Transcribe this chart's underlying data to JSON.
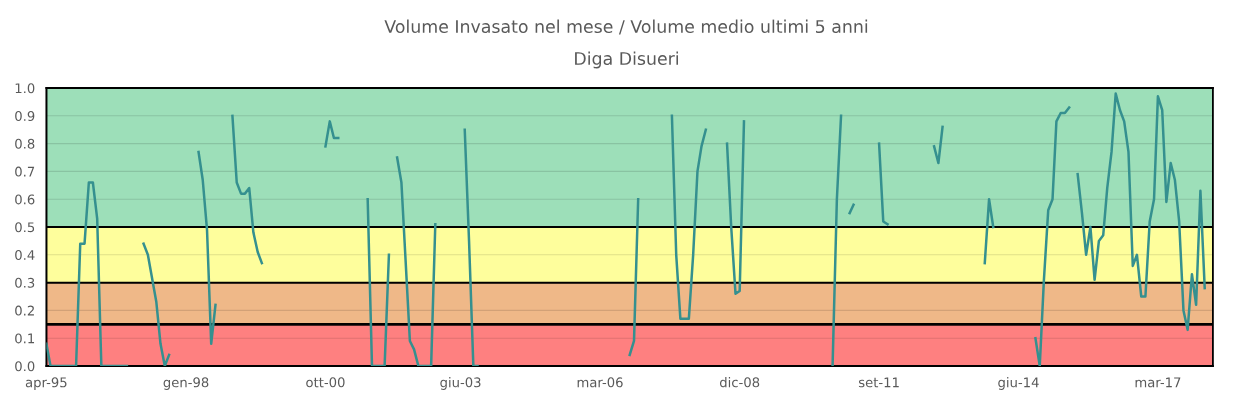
{
  "chart_data": {
    "type": "line",
    "title": "Volume Invasato nel mese / Volume medio ultimi 5 anni",
    "subtitle": "Diga Disueri",
    "x": [
      "1995-04",
      "1995-05",
      "1995-11",
      "1995-12",
      "1996-01",
      "1996-02",
      "1996-03",
      "1996-04",
      "1996-05",
      "1996-11",
      "1996-12",
      "1997-02",
      "1997-03",
      "1997-04",
      "1997-06",
      "1997-07",
      "1997-08",
      "1997-09",
      "1997-10",
      "1998-03",
      "1998-04",
      "1998-05",
      "1998-06",
      "1998-07",
      "1998-08",
      "1998-09",
      "1998-11",
      "1998-12",
      "1999-01",
      "1999-02",
      "1999-03",
      "1999-04",
      "1999-05",
      "1999-06",
      "1999-07",
      "1999-08",
      "2000-09",
      "2000-10",
      "2000-11",
      "2000-12",
      "2001-01",
      "2001-02",
      "2001-07",
      "2001-08",
      "2001-09",
      "2001-12",
      "2002-01",
      "2002-02",
      "2002-03",
      "2002-04",
      "2002-05",
      "2002-06",
      "2002-07",
      "2002-08",
      "2002-11",
      "2002-12",
      "2003-01",
      "2003-06",
      "2003-07",
      "2003-08",
      "2003-09",
      "2003-10",
      "2003-11",
      "2006-09",
      "2006-10",
      "2006-11",
      "2006-12",
      "2007-01",
      "2007-07",
      "2007-08",
      "2007-09",
      "2007-10",
      "2007-11",
      "2007-12",
      "2008-01",
      "2008-02",
      "2008-03",
      "2008-04",
      "2008-05",
      "2008-08",
      "2008-09",
      "2008-10",
      "2008-11",
      "2008-12",
      "2009-01",
      "2009-02",
      "2010-09",
      "2010-10",
      "2010-11",
      "2010-12",
      "2011-01",
      "2011-02",
      "2011-03",
      "2011-04",
      "2011-09",
      "2011-10",
      "2011-11",
      "2011-12",
      "2012-10",
      "2012-11",
      "2012-12",
      "2013-01",
      "2013-10",
      "2013-11",
      "2013-12",
      "2014-01",
      "2014-09",
      "2014-10",
      "2014-11",
      "2014-12",
      "2015-01",
      "2015-02",
      "2015-03",
      "2015-04",
      "2015-05",
      "2015-06",
      "2015-07",
      "2015-08",
      "2015-09",
      "2015-10",
      "2015-11",
      "2015-12",
      "2016-01",
      "2016-02",
      "2016-03",
      "2016-04",
      "2016-05",
      "2016-06",
      "2016-07",
      "2016-08",
      "2016-09",
      "2016-10",
      "2016-11",
      "2016-12",
      "2017-01",
      "2017-02",
      "2017-03",
      "2017-04",
      "2017-05",
      "2017-06",
      "2017-07",
      "2017-08",
      "2017-09",
      "2017-10",
      "2017-11",
      "2017-12",
      "2018-01",
      "2018-02"
    ],
    "series": [
      {
        "color": "#35908f",
        "values": [
          0.08,
          0,
          0,
          0.44,
          0.44,
          0.66,
          0.66,
          0.53,
          0,
          0,
          null,
          null,
          0.44,
          0.4,
          0.23,
          0.08,
          0,
          0.04,
          null,
          null,
          0.77,
          0.67,
          0.49,
          0.08,
          0.22,
          null,
          null,
          0.9,
          0.66,
          0.62,
          0.62,
          0.64,
          0.48,
          0.41,
          0.37,
          null,
          null,
          0.79,
          0.88,
          0.82,
          0.82,
          null,
          null,
          0.6,
          0,
          0,
          0.4,
          null,
          0.75,
          0.66,
          0.38,
          0.09,
          0.06,
          0,
          0,
          0.51,
          null,
          null,
          0.85,
          0.45,
          0,
          0,
          null,
          null,
          0.04,
          0.09,
          0.6,
          null,
          null,
          0.9,
          0.4,
          0.17,
          0.17,
          0.17,
          0.4,
          0.7,
          0.79,
          0.85,
          null,
          null,
          0.8,
          0.5,
          0.26,
          0.27,
          0.88,
          null,
          null,
          0,
          0.6,
          0.9,
          null,
          0.55,
          0.58,
          null,
          0.8,
          0.52,
          0.51,
          null,
          0.79,
          0.73,
          0.86,
          null,
          0.37,
          0.6,
          0.5,
          null,
          null,
          0.1,
          0,
          0.31,
          0.56,
          0.6,
          0.88,
          0.91,
          0.91,
          0.93,
          null,
          0.69,
          0.55,
          0.4,
          0.5,
          0.31,
          0.45,
          0.47,
          0.64,
          0.77,
          0.98,
          0.92,
          0.88,
          0.77,
          0.36,
          0.4,
          0.25,
          0.25,
          0.52,
          0.6,
          0.97,
          0.92,
          0.59,
          0.73,
          0.67,
          0.52,
          0.2,
          0.13,
          0.33,
          0.22,
          0.63,
          0.28
        ]
      }
    ],
    "xlim": [
      "1995-04",
      "2018-04"
    ],
    "xticks": [
      {
        "value": "1995-04",
        "label": "apr-95"
      },
      {
        "value": "1998-01",
        "label": "gen-98"
      },
      {
        "value": "2000-10",
        "label": "ott-00"
      },
      {
        "value": "2003-06",
        "label": "giu-03"
      },
      {
        "value": "2006-03",
        "label": "mar-06"
      },
      {
        "value": "2008-12",
        "label": "dic-08"
      },
      {
        "value": "2011-09",
        "label": "set-11"
      },
      {
        "value": "2014-06",
        "label": "giu-14"
      },
      {
        "value": "2017-03",
        "label": "mar-17"
      }
    ],
    "ylim": [
      0,
      1
    ],
    "yticks": [
      {
        "value": 0,
        "label": "0.0"
      },
      {
        "value": 0.1,
        "label": "0.1"
      },
      {
        "value": 0.2,
        "label": "0.2"
      },
      {
        "value": 0.3,
        "label": "0.3"
      },
      {
        "value": 0.4,
        "label": "0.4"
      },
      {
        "value": 0.5,
        "label": "0.5"
      },
      {
        "value": 0.6,
        "label": "0.6"
      },
      {
        "value": 0.7,
        "label": "0.7"
      },
      {
        "value": 0.8,
        "label": "0.8"
      },
      {
        "value": 0.9,
        "label": "0.9"
      },
      {
        "value": 1,
        "label": "1.0"
      }
    ],
    "bands": [
      {
        "axis": "y",
        "from": 0,
        "to": 0.15,
        "color": "#fe8080"
      },
      {
        "axis": "y",
        "from": 0.15,
        "to": 0.3,
        "color": "#efb888"
      },
      {
        "axis": "y",
        "from": 0.3,
        "to": 0.5,
        "color": "#fefe9c"
      },
      {
        "axis": "y",
        "from": 0.5,
        "to": 1,
        "color": "#9ddfb9"
      }
    ],
    "ref_lines": [
      {
        "axis": "y",
        "value": 0.15,
        "color": "#000000"
      }
    ],
    "grid": true,
    "marker": "none",
    "line_style": "solid"
  }
}
